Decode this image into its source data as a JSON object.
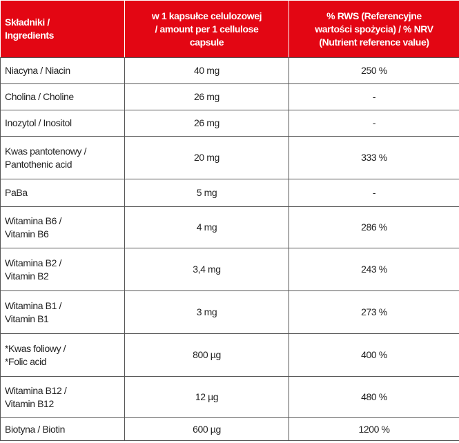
{
  "table": {
    "header": [
      "Składniki /\nIngredients",
      "w 1 kapsułce celulozowej\n/ amount per 1 cellulose\ncapsule",
      "% RWS (Referencyjne\nwartości spożycia) / % NRV\n(Nutrient reference value)"
    ],
    "rows": [
      [
        "Niacyna / Niacin",
        "40 mg",
        "250 %"
      ],
      [
        "Cholina / Choline",
        "26 mg",
        "-"
      ],
      [
        "Inozytol / Inositol",
        "26 mg",
        "-"
      ],
      [
        "Kwas pantotenowy /\nPantothenic acid",
        "20 mg",
        "333 %"
      ],
      [
        "PaBa",
        "5 mg",
        "-"
      ],
      [
        "Witamina B6 /\nVitamin B6",
        "4 mg",
        "286 %"
      ],
      [
        "Witamina B2 /\nVitamin B2",
        "3,4 mg",
        "243 %"
      ],
      [
        "Witamina B1 /\nVitamin B1",
        "3 mg",
        "273 %"
      ],
      [
        "*Kwas foliowy /\n*Folic acid",
        "800 µg",
        "400 %"
      ],
      [
        "Witamina B12 /\nVitamin B12",
        "12 µg",
        "480 %"
      ],
      [
        "Biotyna / Biotin",
        "600 µg",
        "1200 %"
      ]
    ]
  }
}
